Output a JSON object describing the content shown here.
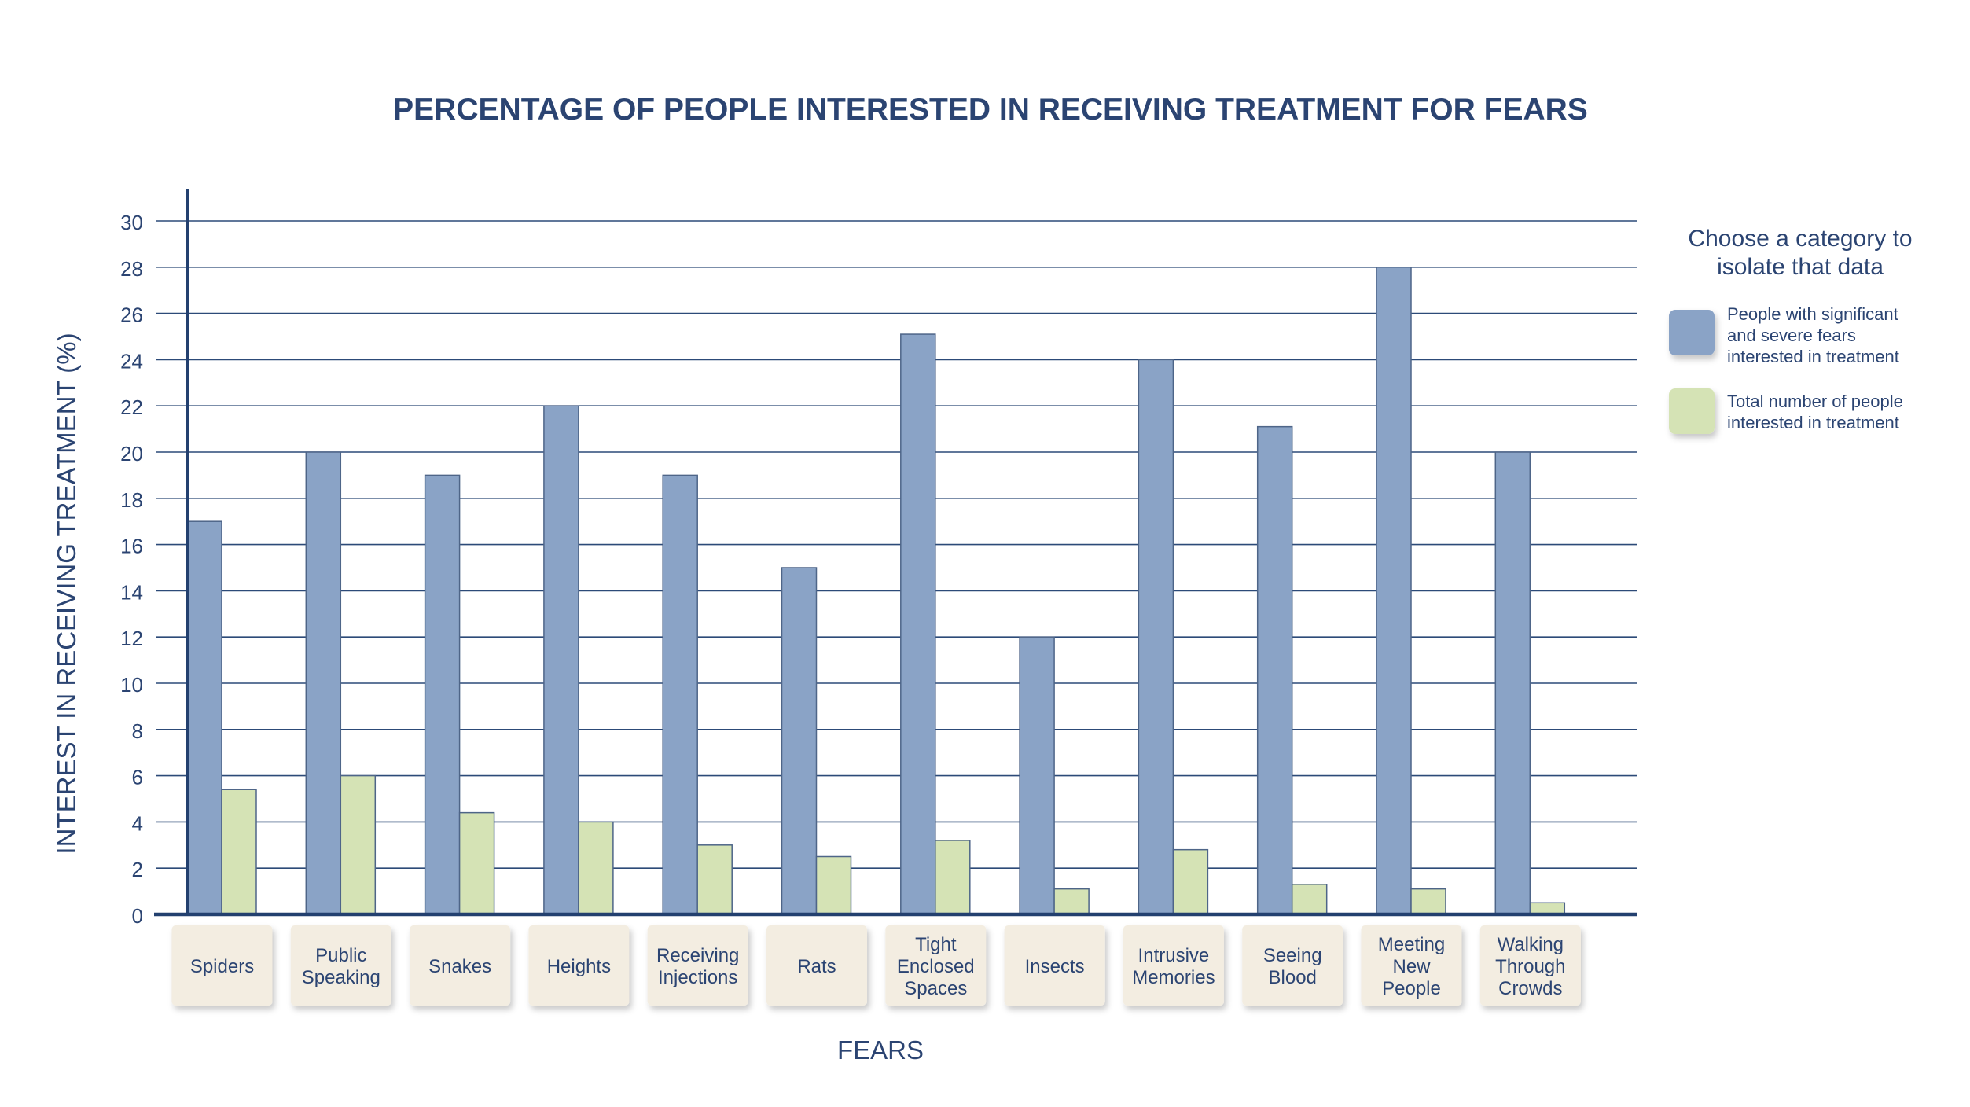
{
  "chart_data": {
    "type": "bar",
    "title": "PERCENTAGE OF PEOPLE INTERESTED IN RECEIVING TREATMENT FOR FEARS",
    "xlabel": "FEARS",
    "ylabel": "INTEREST IN RECEIVING TREATMENT (%)",
    "ylim": [
      0,
      30
    ],
    "yticks": [
      "0",
      "2",
      "4",
      "6",
      "8",
      "10",
      "12",
      "14",
      "16",
      "18",
      "20",
      "22",
      "24",
      "26",
      "28",
      "30"
    ],
    "grid": true,
    "legend_position": "right",
    "categories": [
      "Spiders",
      "Public Speaking",
      "Snakes",
      "Heights",
      "Receiving Injections",
      "Rats",
      "Tight Enclosed Spaces",
      "Insects",
      "Intrusive Memories",
      "Seeing Blood",
      "Meeting New People",
      "Walking Through Crowds"
    ],
    "category_lines": [
      [
        "Spiders"
      ],
      [
        "Public",
        "Speaking"
      ],
      [
        "Snakes"
      ],
      [
        "Heights"
      ],
      [
        "Receiving",
        "Injections"
      ],
      [
        "Rats"
      ],
      [
        "Tight",
        "Enclosed",
        "Spaces"
      ],
      [
        "Insects"
      ],
      [
        "Intrusive",
        "Memories"
      ],
      [
        "Seeing",
        "Blood"
      ],
      [
        "Meeting",
        "New",
        "People"
      ],
      [
        "Walking",
        "Through",
        "Crowds"
      ]
    ],
    "series": [
      {
        "name": "People with significant and severe fears interested in treatment",
        "legend_lines": [
          "People with significant",
          "and severe fears",
          "interested in treatment"
        ],
        "color": "#8aa3c6",
        "values": [
          17,
          20,
          19,
          22,
          19,
          15,
          25.1,
          12,
          24,
          21.1,
          28,
          20
        ]
      },
      {
        "name": "Total number of people interested in treatment",
        "legend_lines": [
          "Total number of people",
          "interested in treatment"
        ],
        "color": "#d5e3b5",
        "values": [
          5.4,
          6,
          4.4,
          4,
          3,
          2.5,
          3.2,
          1.1,
          2.8,
          1.3,
          1.1,
          0.5
        ]
      }
    ]
  },
  "legend": {
    "heading_lines": [
      "Choose a category to",
      "isolate that data"
    ]
  },
  "colors": {
    "text": "#2b4472",
    "axis": "#23406f",
    "grid": "#2c4a78",
    "bar_border": "#4e6588",
    "button_bg": "#f3ede1"
  }
}
